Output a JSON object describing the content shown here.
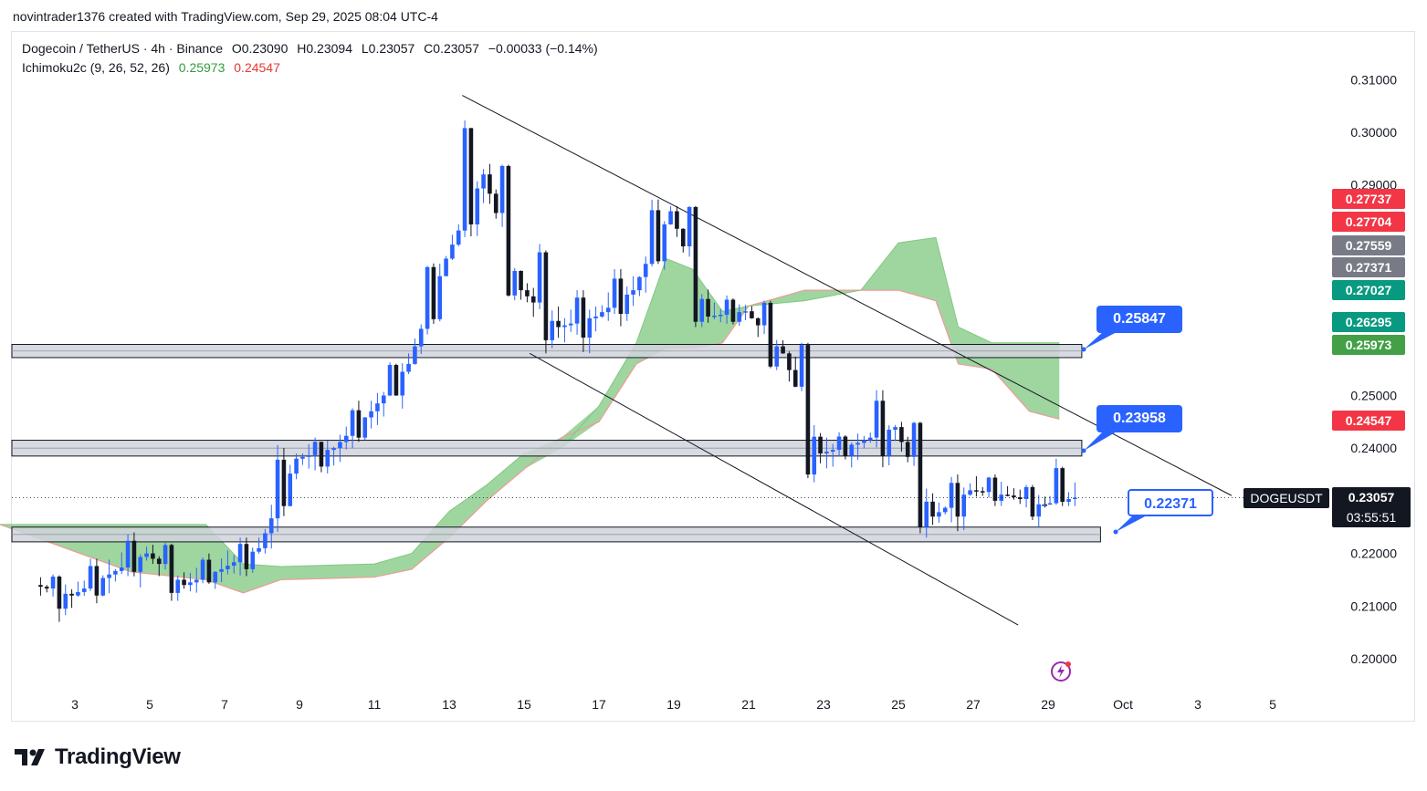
{
  "caption": "novintrader1376 created with TradingView.com, Sep 29, 2025 08:04 UTC-4",
  "legend": {
    "symbol_line": "Dogecoin / TetherUS · 4h · Binance",
    "open": "O0.23090",
    "high": "H0.23094",
    "low": "L0.23057",
    "close": "C0.23057",
    "change": "−0.00033 (−0.14%)",
    "indicator": "Ichimoku2c (9, 26, 52, 26)",
    "ind_value1": "0.25973",
    "ind_value2": "0.24547"
  },
  "price_tags": [
    {
      "text": "0.27737",
      "color": "#f23645"
    },
    {
      "text": "0.27704",
      "color": "#f23645"
    },
    {
      "text": "0.27559",
      "color": "#787b86"
    },
    {
      "text": "0.27371",
      "color": "#787b86"
    },
    {
      "text": "0.27027",
      "color": "#089981"
    },
    {
      "text": "0.26295",
      "color": "#089981"
    },
    {
      "text": "0.25973",
      "color": "#43a047"
    },
    {
      "text": "0.24547",
      "color": "#f23645"
    }
  ],
  "callouts": [
    {
      "text": "0.25847",
      "style": "solid"
    },
    {
      "text": "0.23958",
      "style": "solid"
    },
    {
      "text": "0.22371",
      "style": "outline"
    }
  ],
  "symbol_tag": "DOGEUSDT",
  "last_price": "0.23057",
  "countdown": "03:55:51",
  "brand": "TradingView",
  "colors": {
    "up": "#2962ff",
    "down": "#131722",
    "cloud_fill": "#6cc06c",
    "cloud_edge": "#ef9a9a",
    "zone_fill": "#d1d4dc",
    "zone_edge": "#131722"
  },
  "chart_data": {
    "type": "candlestick",
    "timeframe": "4h",
    "x_ticks": [
      "3",
      "5",
      "7",
      "9",
      "11",
      "13",
      "15",
      "17",
      "19",
      "21",
      "23",
      "25",
      "27",
      "29",
      "Oct",
      "3",
      "5"
    ],
    "y_ticks": [
      "0.31000",
      "0.30000",
      "0.29000",
      "0.25000",
      "0.24000",
      "0.22000",
      "0.21000",
      "0.20000"
    ],
    "y_range": [
      0.197,
      0.312
    ],
    "x_range_days": [
      1.0,
      35.8
    ],
    "current_price": 0.23057,
    "ohlc_daily_approx": [
      {
        "day": 2.5,
        "o": 0.214,
        "h": 0.216,
        "l": 0.207,
        "c": 0.212
      },
      {
        "day": 3.5,
        "o": 0.212,
        "h": 0.219,
        "l": 0.208,
        "c": 0.216
      },
      {
        "day": 4.5,
        "o": 0.216,
        "h": 0.224,
        "l": 0.213,
        "c": 0.22
      },
      {
        "day": 5.5,
        "o": 0.22,
        "h": 0.222,
        "l": 0.211,
        "c": 0.214
      },
      {
        "day": 6.5,
        "o": 0.214,
        "h": 0.22,
        "l": 0.212,
        "c": 0.217
      },
      {
        "day": 7.5,
        "o": 0.217,
        "h": 0.223,
        "l": 0.213,
        "c": 0.221
      },
      {
        "day": 8.5,
        "o": 0.221,
        "h": 0.242,
        "l": 0.22,
        "c": 0.238
      },
      {
        "day": 9.5,
        "o": 0.238,
        "h": 0.242,
        "l": 0.233,
        "c": 0.24
      },
      {
        "day": 10.5,
        "o": 0.24,
        "h": 0.249,
        "l": 0.237,
        "c": 0.247
      },
      {
        "day": 11.5,
        "o": 0.247,
        "h": 0.258,
        "l": 0.244,
        "c": 0.256
      },
      {
        "day": 12.5,
        "o": 0.256,
        "h": 0.279,
        "l": 0.253,
        "c": 0.276
      },
      {
        "day": 13.5,
        "o": 0.276,
        "h": 0.307,
        "l": 0.273,
        "c": 0.292
      },
      {
        "day": 14.5,
        "o": 0.292,
        "h": 0.294,
        "l": 0.268,
        "c": 0.27
      },
      {
        "day": 15.5,
        "o": 0.27,
        "h": 0.279,
        "l": 0.258,
        "c": 0.263
      },
      {
        "day": 16.5,
        "o": 0.263,
        "h": 0.27,
        "l": 0.257,
        "c": 0.265
      },
      {
        "day": 17.5,
        "o": 0.265,
        "h": 0.274,
        "l": 0.261,
        "c": 0.27
      },
      {
        "day": 18.5,
        "o": 0.27,
        "h": 0.289,
        "l": 0.266,
        "c": 0.285
      },
      {
        "day": 19.5,
        "o": 0.285,
        "h": 0.286,
        "l": 0.263,
        "c": 0.265
      },
      {
        "day": 20.5,
        "o": 0.265,
        "h": 0.269,
        "l": 0.262,
        "c": 0.266
      },
      {
        "day": 21.5,
        "o": 0.266,
        "h": 0.268,
        "l": 0.253,
        "c": 0.258
      },
      {
        "day": 22.5,
        "o": 0.258,
        "h": 0.26,
        "l": 0.231,
        "c": 0.239
      },
      {
        "day": 23.5,
        "o": 0.239,
        "h": 0.243,
        "l": 0.236,
        "c": 0.241
      },
      {
        "day": 24.5,
        "o": 0.241,
        "h": 0.251,
        "l": 0.233,
        "c": 0.244
      },
      {
        "day": 25.5,
        "o": 0.244,
        "h": 0.245,
        "l": 0.223,
        "c": 0.227
      },
      {
        "day": 26.5,
        "o": 0.227,
        "h": 0.235,
        "l": 0.222,
        "c": 0.232
      },
      {
        "day": 27.5,
        "o": 0.232,
        "h": 0.235,
        "l": 0.229,
        "c": 0.231
      },
      {
        "day": 28.5,
        "o": 0.231,
        "h": 0.233,
        "l": 0.225,
        "c": 0.229
      },
      {
        "day": 29.3,
        "o": 0.229,
        "h": 0.238,
        "l": 0.229,
        "c": 0.2306
      }
    ],
    "horizontal_zones": [
      {
        "low": 0.2572,
        "high": 0.2597,
        "day_start": 1.0,
        "day_end": 29.9
      },
      {
        "low": 0.2385,
        "high": 0.2415,
        "day_start": 1.0,
        "day_end": 29.9
      },
      {
        "low": 0.2222,
        "high": 0.225,
        "day_start": 1.0,
        "day_end": 30.4
      }
    ],
    "trendlines": [
      {
        "day1": 13.35,
        "p1": 0.307,
        "day2": 33.9,
        "p2": 0.231
      },
      {
        "day1": 15.15,
        "p1": 0.258,
        "day2": 28.2,
        "p2": 0.2064
      }
    ],
    "ichimoku_cloud": [
      {
        "day": 1.0,
        "a": 0.2255,
        "b": 0.2255
      },
      {
        "day": 4.5,
        "a": 0.2255,
        "b": 0.2165
      },
      {
        "day": 6.5,
        "a": 0.2255,
        "b": 0.215
      },
      {
        "day": 7.5,
        "a": 0.218,
        "b": 0.2125
      },
      {
        "day": 8.5,
        "a": 0.2175,
        "b": 0.215
      },
      {
        "day": 11.0,
        "a": 0.218,
        "b": 0.2155
      },
      {
        "day": 12.0,
        "a": 0.22,
        "b": 0.217
      },
      {
        "day": 13.0,
        "a": 0.228,
        "b": 0.223
      },
      {
        "day": 14.0,
        "a": 0.233,
        "b": 0.23
      },
      {
        "day": 15.0,
        "a": 0.239,
        "b": 0.236
      },
      {
        "day": 16.0,
        "a": 0.24,
        "b": 0.242
      },
      {
        "day": 17.0,
        "a": 0.248,
        "b": 0.245
      },
      {
        "day": 18.0,
        "a": 0.26,
        "b": 0.256
      },
      {
        "day": 18.8,
        "a": 0.276,
        "b": 0.259
      },
      {
        "day": 19.5,
        "a": 0.274,
        "b": 0.259
      },
      {
        "day": 20.3,
        "a": 0.266,
        "b": 0.26
      },
      {
        "day": 21.0,
        "a": 0.267,
        "b": 0.267
      },
      {
        "day": 22.5,
        "a": 0.268,
        "b": 0.27
      },
      {
        "day": 24.0,
        "a": 0.27,
        "b": 0.27
      },
      {
        "day": 25.0,
        "a": 0.279,
        "b": 0.27
      },
      {
        "day": 26.0,
        "a": 0.28,
        "b": 0.268
      },
      {
        "day": 26.6,
        "a": 0.263,
        "b": 0.256
      },
      {
        "day": 27.5,
        "a": 0.26,
        "b": 0.255
      },
      {
        "day": 28.5,
        "a": 0.26,
        "b": 0.247
      },
      {
        "day": 29.3,
        "a": 0.26,
        "b": 0.2455
      }
    ]
  }
}
